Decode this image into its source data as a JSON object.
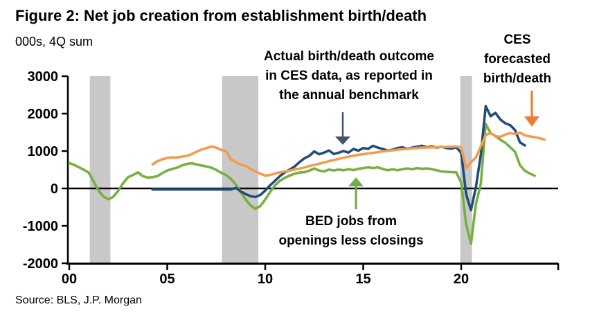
{
  "figure": {
    "title": "Figure 2: Net job creation from establishment birth/death",
    "units_label": "000s, 4Q sum",
    "source": "Source: BLS, J.P. Morgan"
  },
  "chart_data": {
    "type": "line",
    "title": "Figure 2: Net job creation from establishment birth/death",
    "xlabel": "",
    "ylabel": "000s, 4Q sum",
    "xlim": [
      1999.9,
      2025
    ],
    "ylim": [
      -2000,
      3000
    ],
    "grid": false,
    "legend": "annotated-with-arrows",
    "colors": {
      "background": "#FFFFFF",
      "axis": "#000000",
      "recession_band": "#C8C8C8"
    },
    "y_ticks": [
      {
        "value": 3000,
        "label": "3000"
      },
      {
        "value": 2000,
        "label": "2000"
      },
      {
        "value": 1000,
        "label": "1000"
      },
      {
        "value": 0,
        "label": "0"
      },
      {
        "value": -1000,
        "label": "-1000"
      },
      {
        "value": -2000,
        "label": "-2000"
      }
    ],
    "x_ticks": [
      {
        "value": 2000,
        "label": "00"
      },
      {
        "value": 2005,
        "label": "05"
      },
      {
        "value": 2010,
        "label": "10"
      },
      {
        "value": 2015,
        "label": "15"
      },
      {
        "value": 2020,
        "label": "20"
      },
      {
        "value": 2024.95,
        "label": ""
      }
    ],
    "recession_bands": [
      [
        2001.05,
        2002.1
      ],
      [
        2007.8,
        2009.65
      ],
      [
        2019.95,
        2020.55
      ]
    ],
    "series": [
      {
        "name": "Actual birth/death outcome in CES data, as reported in the annual benchmark",
        "color": "#1F4E79",
        "z": 2,
        "points": [
          [
            2004.25,
            -25
          ],
          [
            2008.25,
            -25
          ],
          [
            2008.5,
            15
          ],
          [
            2008.75,
            -80
          ],
          [
            2009.0,
            -150
          ],
          [
            2009.25,
            -205
          ],
          [
            2009.5,
            -230
          ],
          [
            2009.75,
            -175
          ],
          [
            2010.0,
            -55
          ],
          [
            2010.25,
            85
          ],
          [
            2010.5,
            205
          ],
          [
            2010.75,
            330
          ],
          [
            2011.0,
            430
          ],
          [
            2011.25,
            505
          ],
          [
            2011.5,
            585
          ],
          [
            2011.75,
            705
          ],
          [
            2012.0,
            805
          ],
          [
            2012.25,
            870
          ],
          [
            2012.5,
            990
          ],
          [
            2012.75,
            915
          ],
          [
            2013.0,
            955
          ],
          [
            2013.25,
            1015
          ],
          [
            2013.5,
            920
          ],
          [
            2013.75,
            955
          ],
          [
            2014.0,
            1000
          ],
          [
            2014.25,
            960
          ],
          [
            2014.5,
            1055
          ],
          [
            2014.75,
            1010
          ],
          [
            2015.0,
            1080
          ],
          [
            2015.25,
            1060
          ],
          [
            2015.5,
            1140
          ],
          [
            2015.75,
            1090
          ],
          [
            2016.0,
            1055
          ],
          [
            2016.25,
            1010
          ],
          [
            2016.5,
            1035
          ],
          [
            2016.75,
            1080
          ],
          [
            2017.0,
            1100
          ],
          [
            2017.25,
            1060
          ],
          [
            2017.5,
            1090
          ],
          [
            2017.75,
            1115
          ],
          [
            2018.0,
            1140
          ],
          [
            2018.25,
            1100
          ],
          [
            2018.5,
            1125
          ],
          [
            2018.75,
            1090
          ],
          [
            2019.0,
            1115
          ],
          [
            2019.25,
            1080
          ],
          [
            2019.5,
            1065
          ],
          [
            2019.75,
            1100
          ],
          [
            2020.0,
            950
          ],
          [
            2020.25,
            -150
          ],
          [
            2020.5,
            -580
          ],
          [
            2020.75,
            30
          ],
          [
            2021.0,
            900
          ],
          [
            2021.25,
            2200
          ],
          [
            2021.5,
            1930
          ],
          [
            2021.75,
            2020
          ],
          [
            2022.0,
            1840
          ],
          [
            2022.25,
            1740
          ],
          [
            2022.5,
            1690
          ],
          [
            2022.75,
            1560
          ],
          [
            2023.0,
            1230
          ],
          [
            2023.25,
            1150
          ]
        ]
      },
      {
        "name": "CES forecasted birth/death",
        "color": "#F39B4C",
        "z": 3,
        "points": [
          [
            2004.25,
            645
          ],
          [
            2004.5,
            730
          ],
          [
            2004.75,
            780
          ],
          [
            2005.0,
            815
          ],
          [
            2005.25,
            830
          ],
          [
            2005.5,
            828
          ],
          [
            2005.75,
            850
          ],
          [
            2006.0,
            870
          ],
          [
            2006.25,
            915
          ],
          [
            2006.5,
            985
          ],
          [
            2006.75,
            1040
          ],
          [
            2007.0,
            1080
          ],
          [
            2007.25,
            1120
          ],
          [
            2007.5,
            1090
          ],
          [
            2007.75,
            1030
          ],
          [
            2008.0,
            1000
          ],
          [
            2008.25,
            780
          ],
          [
            2008.5,
            700
          ],
          [
            2008.75,
            640
          ],
          [
            2009.0,
            600
          ],
          [
            2009.25,
            520
          ],
          [
            2009.5,
            455
          ],
          [
            2009.75,
            395
          ],
          [
            2010.0,
            345
          ],
          [
            2010.25,
            360
          ],
          [
            2010.5,
            400
          ],
          [
            2010.75,
            430
          ],
          [
            2011.0,
            455
          ],
          [
            2011.25,
            480
          ],
          [
            2011.5,
            505
          ],
          [
            2011.75,
            530
          ],
          [
            2012.0,
            560
          ],
          [
            2012.25,
            600
          ],
          [
            2012.5,
            630
          ],
          [
            2012.75,
            660
          ],
          [
            2013.0,
            695
          ],
          [
            2013.25,
            730
          ],
          [
            2013.5,
            760
          ],
          [
            2013.75,
            790
          ],
          [
            2014.0,
            820
          ],
          [
            2014.25,
            850
          ],
          [
            2014.5,
            875
          ],
          [
            2014.75,
            900
          ],
          [
            2015.0,
            915
          ],
          [
            2015.25,
            935
          ],
          [
            2015.5,
            950
          ],
          [
            2015.75,
            970
          ],
          [
            2016.0,
            990
          ],
          [
            2016.25,
            1005
          ],
          [
            2016.5,
            1020
          ],
          [
            2016.75,
            1035
          ],
          [
            2017.0,
            1050
          ],
          [
            2017.25,
            1060
          ],
          [
            2017.5,
            1072
          ],
          [
            2017.75,
            1082
          ],
          [
            2018.0,
            1090
          ],
          [
            2018.25,
            1092
          ],
          [
            2018.5,
            1098
          ],
          [
            2018.75,
            1100
          ],
          [
            2019.0,
            1108
          ],
          [
            2019.25,
            1110
          ],
          [
            2019.5,
            1115
          ],
          [
            2019.75,
            1120
          ],
          [
            2020.0,
            1095
          ],
          [
            2020.25,
            545
          ],
          [
            2020.5,
            700
          ],
          [
            2020.75,
            830
          ],
          [
            2021.0,
            1120
          ],
          [
            2021.25,
            1430
          ],
          [
            2021.5,
            1480
          ],
          [
            2021.75,
            1395
          ],
          [
            2022.0,
            1380
          ],
          [
            2022.25,
            1440
          ],
          [
            2022.5,
            1480
          ],
          [
            2022.75,
            1455
          ],
          [
            2023.0,
            1490
          ],
          [
            2023.25,
            1420
          ],
          [
            2023.5,
            1390
          ],
          [
            2023.75,
            1370
          ],
          [
            2024.0,
            1345
          ],
          [
            2024.25,
            1305
          ]
        ]
      },
      {
        "name": "BED jobs from openings less closings",
        "color": "#76B041",
        "z": 1,
        "points": [
          [
            2000.0,
            680
          ],
          [
            2000.25,
            630
          ],
          [
            2000.5,
            565
          ],
          [
            2000.75,
            500
          ],
          [
            2001.0,
            420
          ],
          [
            2001.25,
            180
          ],
          [
            2001.5,
            -60
          ],
          [
            2001.75,
            -220
          ],
          [
            2002.0,
            -290
          ],
          [
            2002.25,
            -220
          ],
          [
            2002.5,
            -60
          ],
          [
            2002.75,
            140
          ],
          [
            2003.0,
            300
          ],
          [
            2003.25,
            360
          ],
          [
            2003.5,
            430
          ],
          [
            2003.75,
            330
          ],
          [
            2004.0,
            290
          ],
          [
            2004.25,
            300
          ],
          [
            2004.5,
            330
          ],
          [
            2004.75,
            410
          ],
          [
            2005.0,
            480
          ],
          [
            2005.25,
            520
          ],
          [
            2005.5,
            555
          ],
          [
            2005.75,
            615
          ],
          [
            2006.0,
            655
          ],
          [
            2006.25,
            675
          ],
          [
            2006.5,
            640
          ],
          [
            2006.75,
            615
          ],
          [
            2007.0,
            585
          ],
          [
            2007.25,
            555
          ],
          [
            2007.5,
            495
          ],
          [
            2007.75,
            420
          ],
          [
            2008.0,
            360
          ],
          [
            2008.25,
            255
          ],
          [
            2008.5,
            105
          ],
          [
            2008.75,
            -95
          ],
          [
            2009.0,
            -295
          ],
          [
            2009.25,
            -455
          ],
          [
            2009.5,
            -545
          ],
          [
            2009.75,
            -470
          ],
          [
            2010.0,
            -295
          ],
          [
            2010.25,
            -95
          ],
          [
            2010.5,
            85
          ],
          [
            2010.75,
            205
          ],
          [
            2011.0,
            285
          ],
          [
            2011.25,
            345
          ],
          [
            2011.5,
            395
          ],
          [
            2011.75,
            425
          ],
          [
            2012.0,
            435
          ],
          [
            2012.25,
            475
          ],
          [
            2012.5,
            535
          ],
          [
            2012.75,
            480
          ],
          [
            2013.0,
            455
          ],
          [
            2013.25,
            505
          ],
          [
            2013.5,
            480
          ],
          [
            2013.75,
            505
          ],
          [
            2014.0,
            485
          ],
          [
            2014.25,
            515
          ],
          [
            2014.5,
            490
          ],
          [
            2014.75,
            525
          ],
          [
            2015.0,
            545
          ],
          [
            2015.25,
            565
          ],
          [
            2015.5,
            545
          ],
          [
            2015.75,
            565
          ],
          [
            2016.0,
            520
          ],
          [
            2016.25,
            485
          ],
          [
            2016.5,
            515
          ],
          [
            2016.75,
            485
          ],
          [
            2017.0,
            515
          ],
          [
            2017.25,
            535
          ],
          [
            2017.5,
            515
          ],
          [
            2017.75,
            545
          ],
          [
            2018.0,
            525
          ],
          [
            2018.25,
            535
          ],
          [
            2018.5,
            515
          ],
          [
            2018.75,
            485
          ],
          [
            2019.0,
            455
          ],
          [
            2019.25,
            445
          ],
          [
            2019.5,
            435
          ],
          [
            2019.75,
            430
          ],
          [
            2020.0,
            150
          ],
          [
            2020.25,
            -950
          ],
          [
            2020.5,
            -1480
          ],
          [
            2020.75,
            -420
          ],
          [
            2021.0,
            120
          ],
          [
            2021.25,
            1720
          ],
          [
            2021.5,
            1480
          ],
          [
            2021.75,
            1400
          ],
          [
            2022.0,
            1300
          ],
          [
            2022.25,
            1220
          ],
          [
            2022.5,
            1100
          ],
          [
            2022.75,
            980
          ],
          [
            2023.0,
            620
          ],
          [
            2023.25,
            470
          ],
          [
            2023.5,
            400
          ],
          [
            2023.75,
            340
          ]
        ]
      }
    ],
    "annotations": [
      {
        "id": "ces-actual",
        "lines": [
          "Actual birth/death outcome",
          "in CES data, as reported in",
          "the annual benchmark"
        ],
        "arrow_color": "#44546A"
      },
      {
        "id": "ces-forecast",
        "lines": [
          "CES",
          "forecasted",
          "birth/death"
        ],
        "arrow_color": "#ED7D31"
      },
      {
        "id": "bed-jobs",
        "lines": [
          "BED jobs from",
          "openings less closings"
        ],
        "arrow_color": "#70AD47"
      }
    ]
  }
}
